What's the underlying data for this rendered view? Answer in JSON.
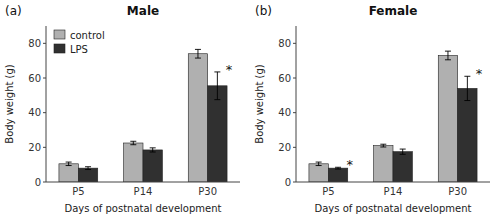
{
  "chart_data": [
    {
      "type": "bar",
      "title": "Male",
      "categories": [
        "P5",
        "P14",
        "P30"
      ],
      "series": [
        {
          "name": "control",
          "color": "#b0b0b0",
          "values": [
            10.5,
            22.5,
            74.0
          ],
          "errors": [
            1.0,
            1.0,
            2.5
          ]
        },
        {
          "name": "LPS",
          "color": "#303030",
          "values": [
            8.0,
            18.5,
            55.5
          ],
          "errors": [
            0.8,
            1.2,
            8.0
          ]
        }
      ],
      "xlabel": "Days of postnatal development",
      "ylabel": "Body weight (g)",
      "ylim": [
        0,
        90
      ],
      "yticks": [
        0,
        20,
        40,
        60,
        80
      ],
      "grid": false,
      "legend": "upper left",
      "annotations": [
        {
          "text": "(a)"
        },
        {
          "text": "*",
          "series": 1,
          "index": 2
        }
      ]
    },
    {
      "type": "bar",
      "title": "Female",
      "categories": [
        "P5",
        "P14",
        "P30"
      ],
      "series": [
        {
          "color": "#b0b0b0",
          "values": [
            10.5,
            21.0,
            73.0
          ],
          "errors": [
            1.0,
            0.8,
            2.5
          ]
        },
        {
          "color": "#303030",
          "values": [
            8.0,
            17.5,
            54.0
          ],
          "errors": [
            0.5,
            1.5,
            7.0
          ]
        }
      ],
      "xlabel": "Days of postnatal development",
      "ylabel": "Body weight (g)",
      "ylim": [
        0,
        90
      ],
      "yticks": [
        0,
        20,
        40,
        60,
        80
      ],
      "grid": false,
      "legend": false,
      "annotations": [
        {
          "text": "(b)"
        },
        {
          "text": "*",
          "series": 1,
          "index": 0
        },
        {
          "text": "*",
          "series": 1,
          "index": 2
        }
      ]
    }
  ]
}
